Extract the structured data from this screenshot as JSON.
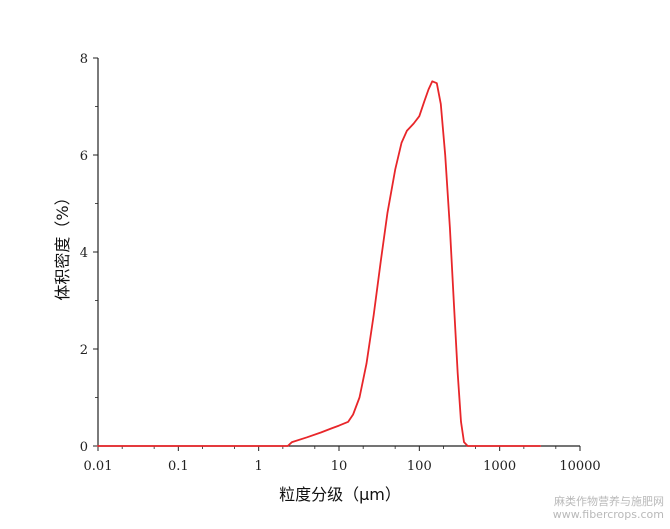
{
  "chart_data": {
    "type": "line",
    "xlabel": "粒度分级（μm）",
    "ylabel": "体积密度（%）",
    "x_scale": "log",
    "xlim": [
      0.01,
      10000
    ],
    "ylim": [
      0,
      8
    ],
    "x_ticks": [
      0.01,
      0.1,
      1,
      10,
      100,
      1000,
      10000
    ],
    "x_tick_labels": [
      "0.01",
      "0.1",
      "1",
      "10",
      "100",
      "1000",
      "10000"
    ],
    "y_ticks": [
      0,
      2,
      4,
      6,
      8
    ],
    "y_tick_labels": [
      "0",
      "2",
      "4",
      "6",
      "8"
    ],
    "grid": false,
    "legend": "none",
    "series": [
      {
        "color": "#e8262a",
        "points": [
          [
            0.01,
            0
          ],
          [
            2.3,
            0
          ],
          [
            2.6,
            0.08
          ],
          [
            4,
            0.18
          ],
          [
            6,
            0.28
          ],
          [
            8,
            0.36
          ],
          [
            10,
            0.42
          ],
          [
            13,
            0.5
          ],
          [
            15,
            0.65
          ],
          [
            18,
            1.0
          ],
          [
            22,
            1.7
          ],
          [
            27,
            2.7
          ],
          [
            33,
            3.8
          ],
          [
            40,
            4.8
          ],
          [
            50,
            5.7
          ],
          [
            60,
            6.25
          ],
          [
            70,
            6.5
          ],
          [
            85,
            6.65
          ],
          [
            100,
            6.8
          ],
          [
            115,
            7.1
          ],
          [
            130,
            7.35
          ],
          [
            145,
            7.52
          ],
          [
            165,
            7.48
          ],
          [
            185,
            7.05
          ],
          [
            210,
            6.0
          ],
          [
            240,
            4.5
          ],
          [
            270,
            2.9
          ],
          [
            300,
            1.5
          ],
          [
            330,
            0.5
          ],
          [
            360,
            0.08
          ],
          [
            400,
            0
          ],
          [
            3200,
            0
          ]
        ]
      }
    ]
  },
  "watermark": {
    "line1": "麻类作物营养与施肥网",
    "line2": "www.fibercrops.com"
  }
}
